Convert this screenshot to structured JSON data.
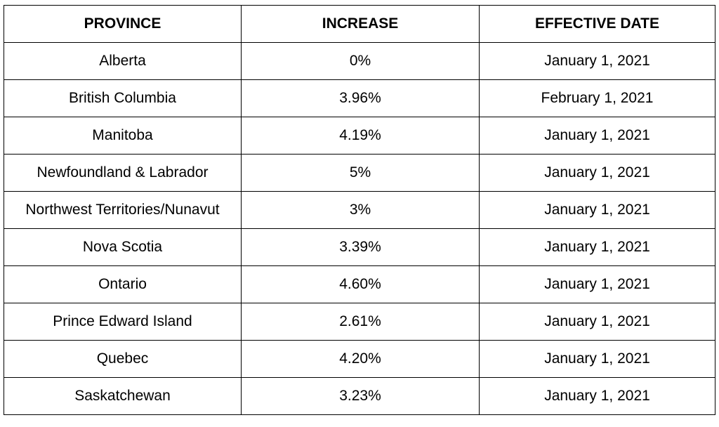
{
  "table": {
    "headers": [
      "PROVINCE",
      "INCREASE",
      "EFFECTIVE DATE"
    ],
    "rows": [
      [
        "Alberta",
        "0%",
        "January 1, 2021"
      ],
      [
        "British Columbia",
        "3.96%",
        "February 1, 2021"
      ],
      [
        "Manitoba",
        "4.19%",
        "January 1, 2021"
      ],
      [
        "Newfoundland & Labrador",
        "5%",
        "January 1, 2021"
      ],
      [
        "Northwest Territories/Nunavut",
        "3%",
        "January 1, 2021"
      ],
      [
        "Nova Scotia",
        "3.39%",
        "January 1, 2021"
      ],
      [
        "Ontario",
        "4.60%",
        "January 1, 2021"
      ],
      [
        "Prince Edward Island",
        "2.61%",
        "January 1, 2021"
      ],
      [
        "Quebec",
        "4.20%",
        "January 1, 2021"
      ],
      [
        "Saskatchewan",
        "3.23%",
        "January 1, 2021"
      ]
    ]
  }
}
